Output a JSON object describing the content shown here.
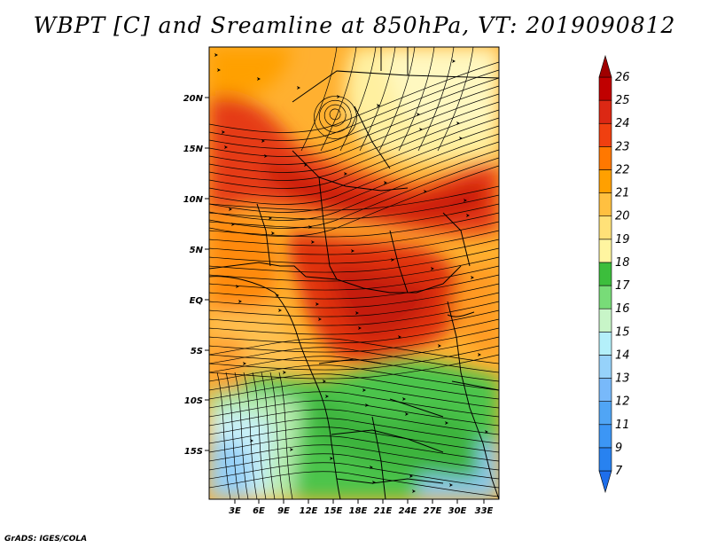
{
  "title": "WBPT [C] and Sreamline at 850hPa, VT: 2019090812",
  "credit": "GrADS: IGES/COLA",
  "map": {
    "variable": "Wet-bulb potential temperature",
    "units": "C",
    "level": "850hPa",
    "lat_labels": [
      "20N",
      "15N",
      "10N",
      "5N",
      "EQ",
      "5S",
      "10S",
      "15S"
    ],
    "lon_labels": [
      "3E",
      "6E",
      "9E",
      "12E",
      "15E",
      "18E",
      "21E",
      "24E",
      "27E",
      "30E",
      "33E"
    ]
  },
  "colorbar": {
    "levels": [
      "7",
      "9",
      "11",
      "12",
      "13",
      "14",
      "15",
      "16",
      "17",
      "18",
      "19",
      "20",
      "21",
      "22",
      "23",
      "24",
      "25",
      "26"
    ],
    "colors": [
      "#1e6eeb",
      "#2882f0",
      "#3c96f5",
      "#50a5f5",
      "#78b9fa",
      "#96d2fa",
      "#b4f0fa",
      "#c8f5c8",
      "#78dc78",
      "#3cbe3c",
      "#fff5a0",
      "#ffe178",
      "#ffc040",
      "#ffa000",
      "#ff7800",
      "#f04010",
      "#dc2814",
      "#c00000",
      "#a00000"
    ]
  }
}
